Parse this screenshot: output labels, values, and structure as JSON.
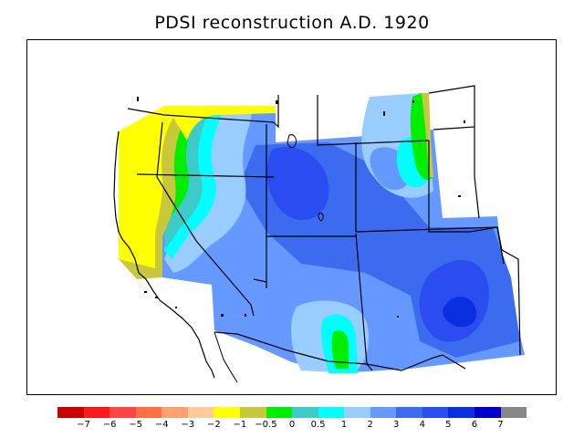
{
  "title": "PDSI reconstruction A.D. 1920",
  "colorbar": {
    "colors": [
      "#cc0000",
      "#ff1a1a",
      "#ff4545",
      "#ff7040",
      "#ffa070",
      "#ffcc99",
      "#ffff00",
      "#c8c83c",
      "#00ee00",
      "#3ccbc8",
      "#00ffff",
      "#99ccff",
      "#6699ff",
      "#3d6bf0",
      "#2a4cf0",
      "#0a2ee0",
      "#0000cc",
      "#888888"
    ],
    "labels": [
      "−7",
      "−6",
      "−5",
      "−4",
      "−3",
      "−2",
      "−1",
      "−0.5",
      "0",
      "0.5",
      "1",
      "2",
      "3",
      "4",
      "5",
      "6",
      "7"
    ]
  },
  "map": {
    "ocean_color": "#ffffff",
    "region": "western-united-states",
    "field_colors": {
      "dry_yellow": "#ffff00",
      "olive": "#c8c83c",
      "green": "#00ee00",
      "teal": "#3ccbc8",
      "cyan": "#00ffff",
      "light_blue": "#99ccff",
      "blue_3": "#6699ff",
      "blue_4": "#3d6bf0",
      "blue_5": "#2a4cf0",
      "blue_6": "#0a2ee0"
    }
  }
}
